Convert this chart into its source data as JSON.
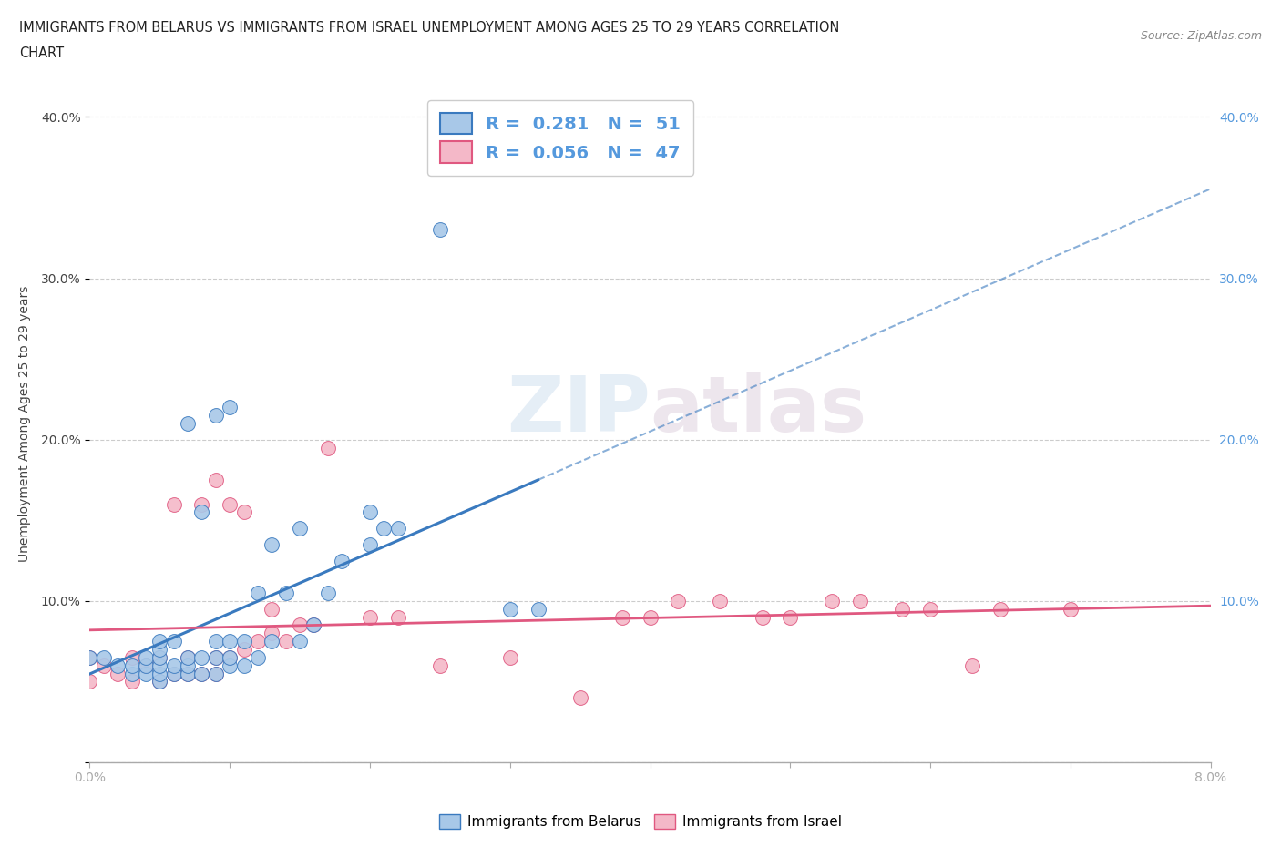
{
  "title": "IMMIGRANTS FROM BELARUS VS IMMIGRANTS FROM ISRAEL UNEMPLOYMENT AMONG AGES 25 TO 29 YEARS CORRELATION\nCHART",
  "source": "Source: ZipAtlas.com",
  "ylabel": "Unemployment Among Ages 25 to 29 years",
  "xmin": 0.0,
  "xmax": 0.08,
  "ymin": 0.0,
  "ymax": 0.42,
  "xticks": [
    0.0,
    0.01,
    0.02,
    0.03,
    0.04,
    0.05,
    0.06,
    0.07,
    0.08
  ],
  "yticks": [
    0.0,
    0.1,
    0.2,
    0.3,
    0.4
  ],
  "belarus_color": "#a8c8e8",
  "israel_color": "#f4b8c8",
  "belarus_line_color": "#3a7abf",
  "israel_line_color": "#e05880",
  "right_tick_color": "#5599dd",
  "R_belarus": 0.281,
  "N_belarus": 51,
  "R_israel": 0.056,
  "N_israel": 47,
  "belarus_scatter_x": [
    0.0,
    0.001,
    0.002,
    0.003,
    0.003,
    0.004,
    0.004,
    0.004,
    0.005,
    0.005,
    0.005,
    0.005,
    0.005,
    0.005,
    0.006,
    0.006,
    0.006,
    0.007,
    0.007,
    0.007,
    0.007,
    0.008,
    0.008,
    0.008,
    0.009,
    0.009,
    0.009,
    0.009,
    0.01,
    0.01,
    0.01,
    0.01,
    0.011,
    0.011,
    0.012,
    0.012,
    0.013,
    0.013,
    0.014,
    0.015,
    0.015,
    0.016,
    0.017,
    0.018,
    0.02,
    0.02,
    0.021,
    0.022,
    0.025,
    0.03,
    0.032
  ],
  "belarus_scatter_y": [
    0.065,
    0.065,
    0.06,
    0.055,
    0.06,
    0.055,
    0.06,
    0.065,
    0.05,
    0.055,
    0.06,
    0.065,
    0.07,
    0.075,
    0.055,
    0.06,
    0.075,
    0.055,
    0.06,
    0.065,
    0.21,
    0.055,
    0.065,
    0.155,
    0.055,
    0.065,
    0.075,
    0.215,
    0.06,
    0.065,
    0.075,
    0.22,
    0.06,
    0.075,
    0.065,
    0.105,
    0.075,
    0.135,
    0.105,
    0.075,
    0.145,
    0.085,
    0.105,
    0.125,
    0.135,
    0.155,
    0.145,
    0.145,
    0.33,
    0.095,
    0.095
  ],
  "israel_scatter_x": [
    0.0,
    0.0,
    0.001,
    0.002,
    0.003,
    0.003,
    0.004,
    0.005,
    0.005,
    0.006,
    0.006,
    0.007,
    0.007,
    0.008,
    0.008,
    0.009,
    0.009,
    0.009,
    0.01,
    0.01,
    0.011,
    0.011,
    0.012,
    0.013,
    0.013,
    0.014,
    0.015,
    0.016,
    0.017,
    0.02,
    0.022,
    0.025,
    0.03,
    0.035,
    0.038,
    0.04,
    0.042,
    0.045,
    0.048,
    0.05,
    0.053,
    0.055,
    0.058,
    0.06,
    0.063,
    0.065,
    0.07
  ],
  "israel_scatter_y": [
    0.05,
    0.065,
    0.06,
    0.055,
    0.05,
    0.065,
    0.06,
    0.05,
    0.065,
    0.055,
    0.16,
    0.055,
    0.065,
    0.055,
    0.16,
    0.055,
    0.065,
    0.175,
    0.065,
    0.16,
    0.07,
    0.155,
    0.075,
    0.08,
    0.095,
    0.075,
    0.085,
    0.085,
    0.195,
    0.09,
    0.09,
    0.06,
    0.065,
    0.04,
    0.09,
    0.09,
    0.1,
    0.1,
    0.09,
    0.09,
    0.1,
    0.1,
    0.095,
    0.095,
    0.06,
    0.095,
    0.095
  ]
}
